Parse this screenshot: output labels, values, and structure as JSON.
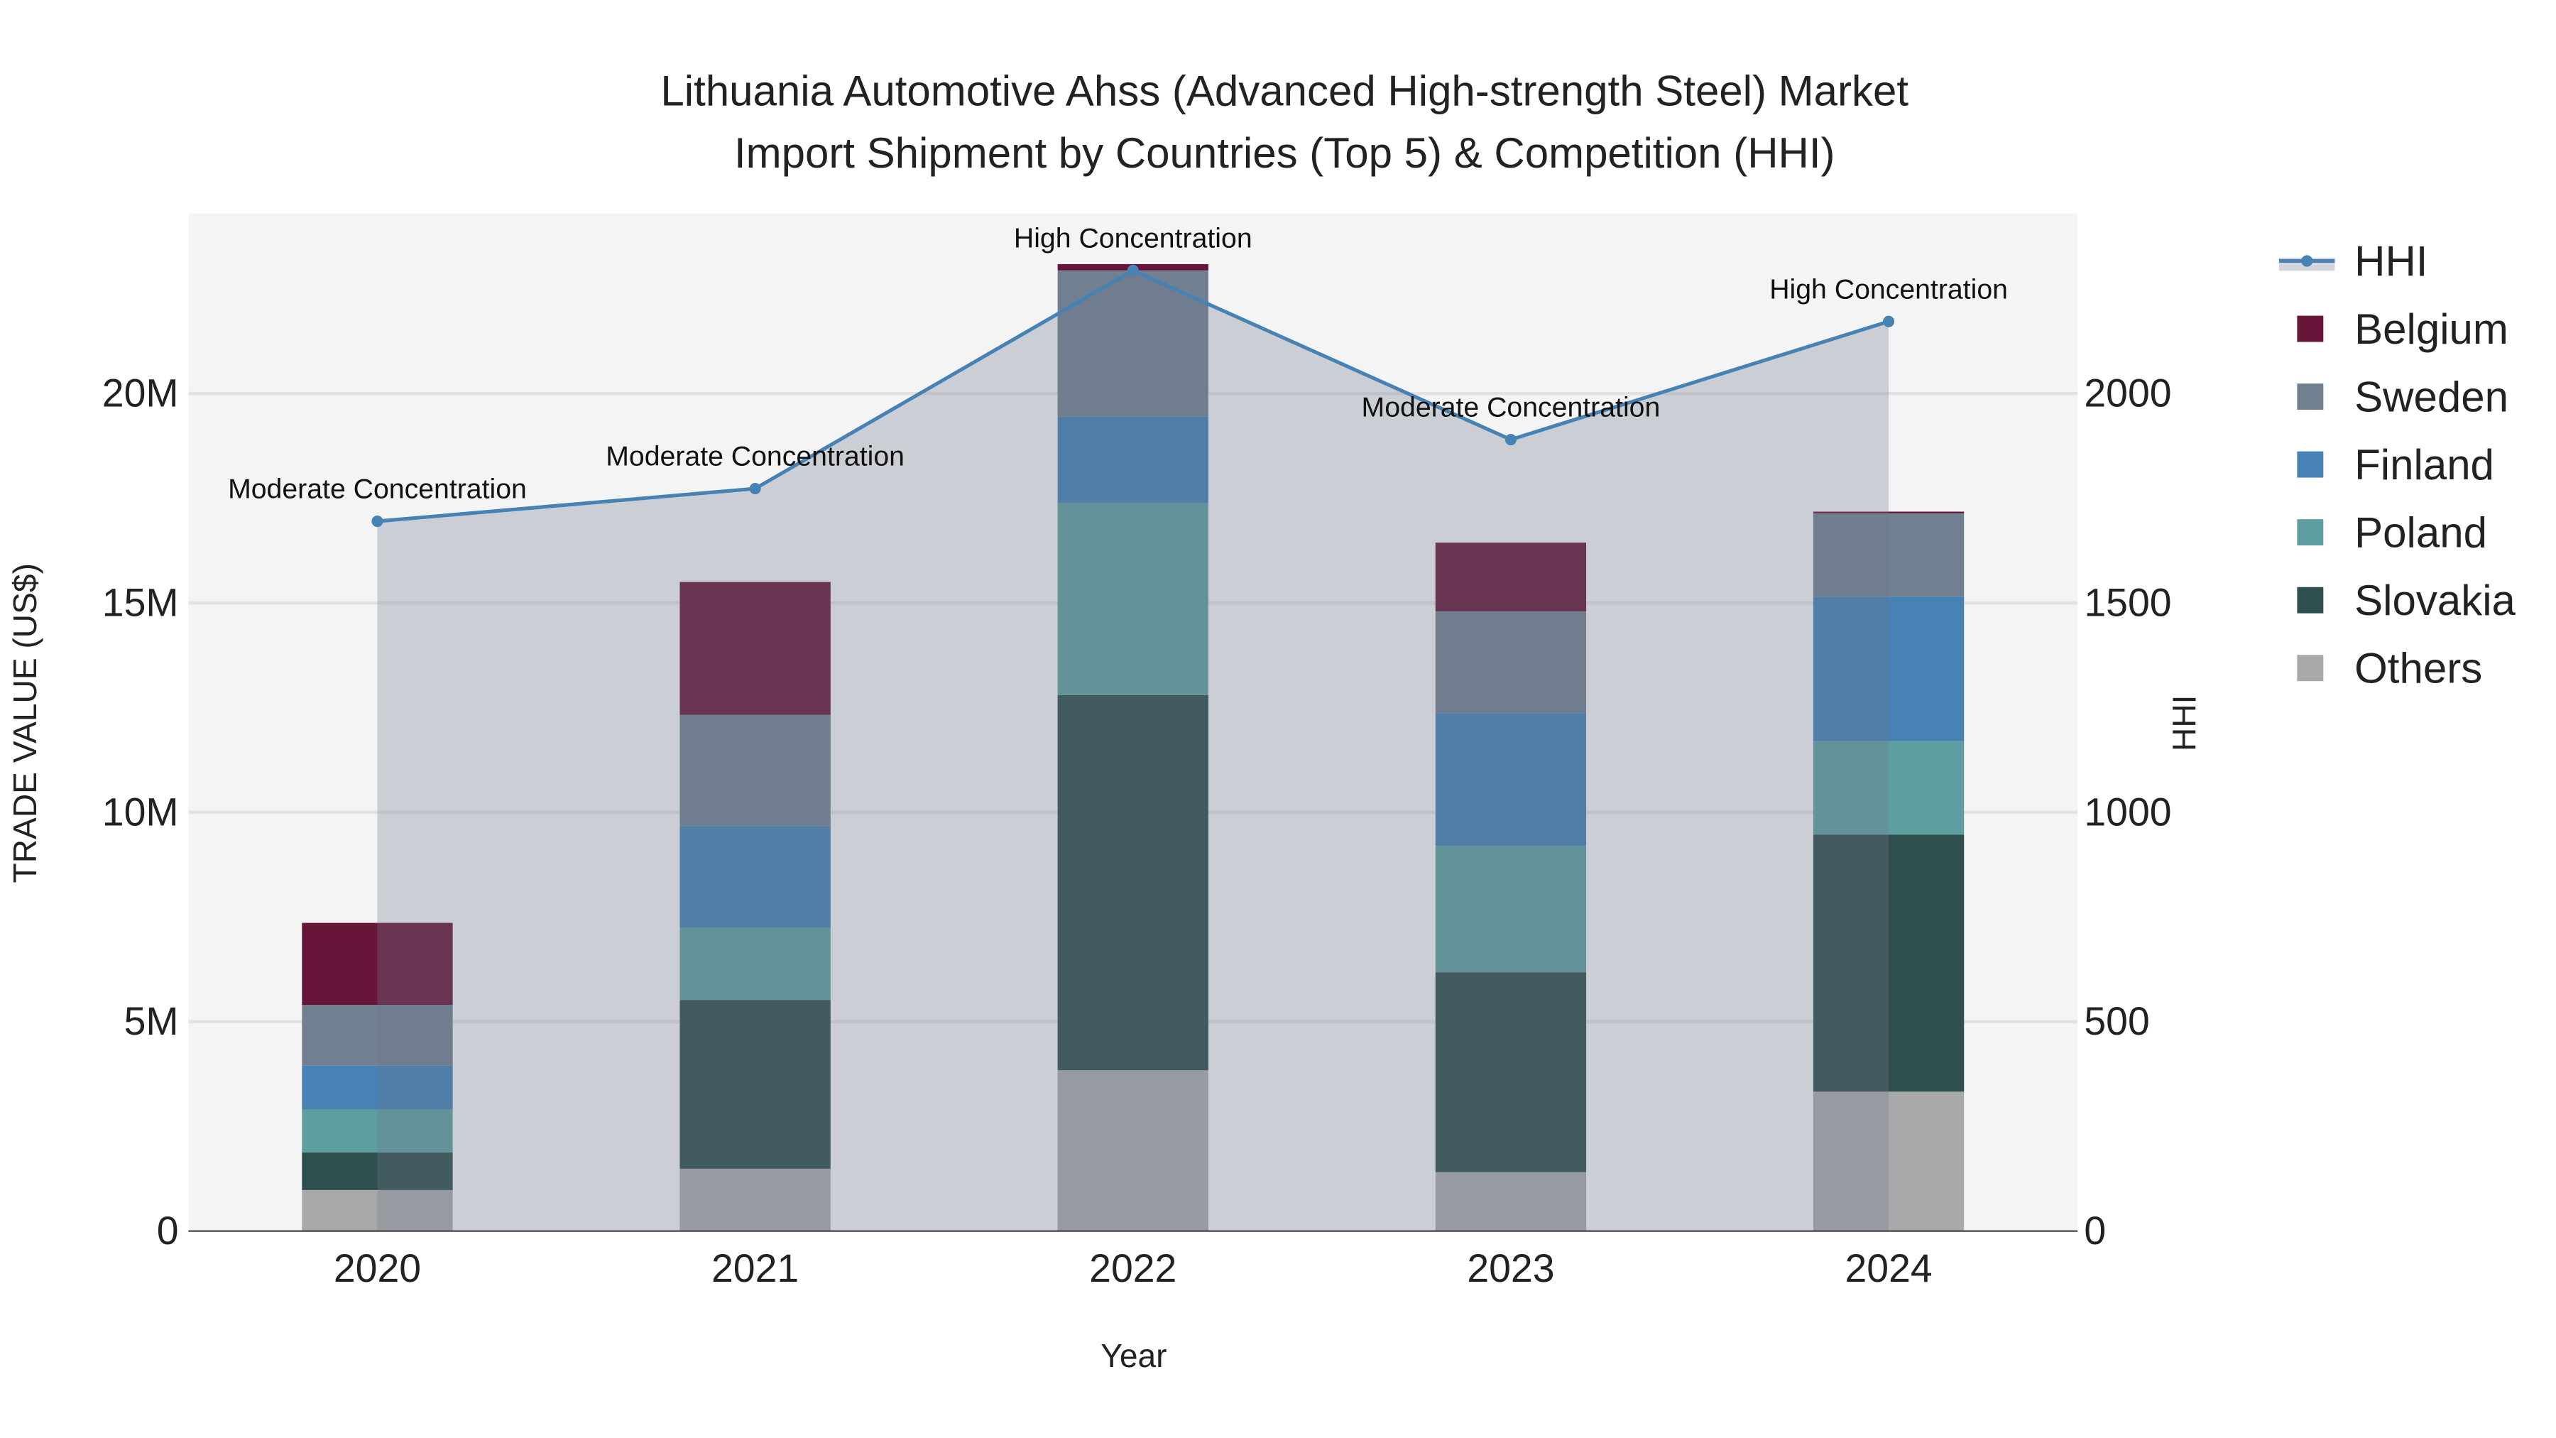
{
  "chart_data": {
    "type": "bar",
    "stacked": true,
    "title_line1": "Lithuania Automotive Ahss (Advanced High-strength Steel) Market",
    "title_line2": "Import Shipment by Countries (Top 5) & Competition (HHI)",
    "xlabel": "Year",
    "ylabel": "TRADE VALUE (US$)",
    "y2label": "HHI",
    "categories": [
      "2020",
      "2021",
      "2022",
      "2023",
      "2024"
    ],
    "ylim": [
      0,
      24300000
    ],
    "y2lim": [
      0,
      2430
    ],
    "yticks": [
      {
        "v": 0,
        "label": "0"
      },
      {
        "v": 5000000,
        "label": "5M"
      },
      {
        "v": 10000000,
        "label": "10M"
      },
      {
        "v": 15000000,
        "label": "15M"
      },
      {
        "v": 20000000,
        "label": "20M"
      }
    ],
    "y2ticks": [
      {
        "v": 0,
        "label": "0"
      },
      {
        "v": 500,
        "label": "500"
      },
      {
        "v": 1000,
        "label": "1000"
      },
      {
        "v": 1500,
        "label": "1500"
      },
      {
        "v": 2000,
        "label": "2000"
      }
    ],
    "series": [
      {
        "name": "Others",
        "color": "#a9a9a9",
        "values": [
          980000,
          1490000,
          3840000,
          1410000,
          3330000
        ]
      },
      {
        "name": "Slovakia",
        "color": "#2f4f4f",
        "values": [
          900000,
          4030000,
          8960000,
          4770000,
          6140000
        ]
      },
      {
        "name": "Poland",
        "color": "#5f9ea0",
        "values": [
          1020000,
          1720000,
          4580000,
          3020000,
          2230000
        ]
      },
      {
        "name": "Finland",
        "color": "#4682b4",
        "values": [
          1050000,
          2430000,
          2070000,
          3170000,
          3450000
        ]
      },
      {
        "name": "Sweden",
        "color": "#708090",
        "values": [
          1450000,
          2660000,
          3490000,
          2430000,
          1990000
        ]
      },
      {
        "name": "Belgium",
        "color": "#67163a",
        "values": [
          1960000,
          3170000,
          150000,
          1640000,
          40000
        ]
      }
    ],
    "hhi": {
      "name": "HHI",
      "color": "#4682b4",
      "values": [
        1695,
        1773,
        2294,
        1890,
        2172
      ]
    },
    "annotations": [
      "Moderate Concentration",
      "Moderate Concentration",
      "High Concentration",
      "Moderate Concentration",
      "High Concentration"
    ],
    "legend_order": [
      "HHI",
      "Belgium",
      "Sweden",
      "Finland",
      "Poland",
      "Slovakia",
      "Others"
    ],
    "legend_placement": "right",
    "grid": true
  }
}
